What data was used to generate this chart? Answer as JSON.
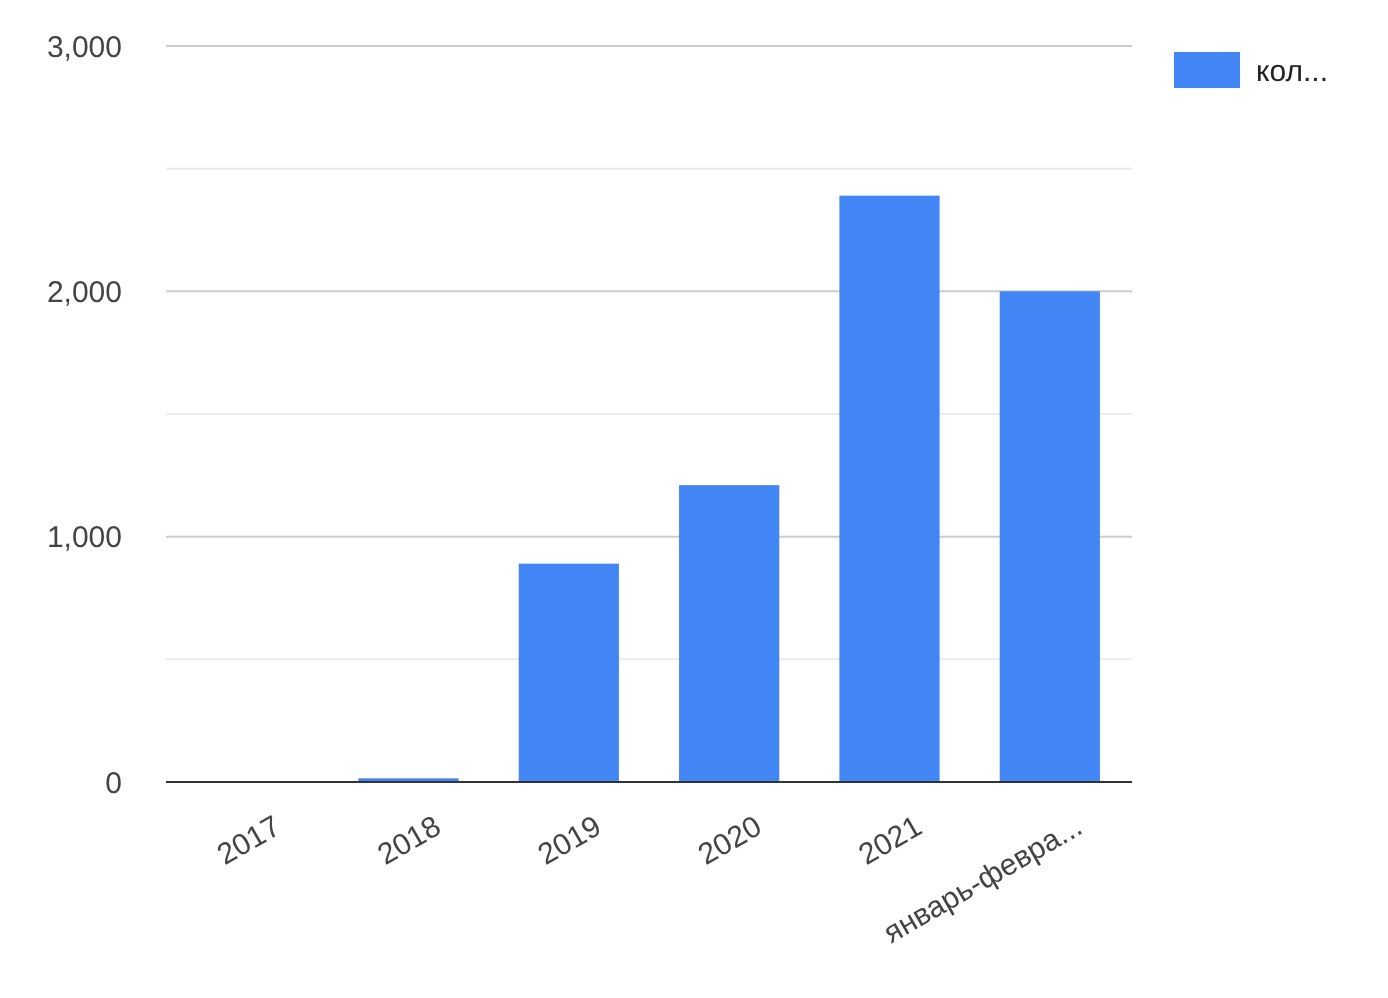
{
  "chart_data": {
    "type": "bar",
    "categories": [
      "2017",
      "2018",
      "2019",
      "2020",
      "2021",
      "январь-февра..."
    ],
    "series": [
      {
        "name": "кол...",
        "color": "#4285f4",
        "values": [
          0,
          15,
          890,
          1210,
          2390,
          2000
        ]
      }
    ],
    "ylim": [
      0,
      3000
    ],
    "yticks": [
      0,
      {
        "value": 500,
        "label": null
      },
      {
        "value": 1000,
        "label": "1,000"
      },
      {
        "value": 1500,
        "label": null
      },
      {
        "value": 2000,
        "label": "2,000"
      },
      {
        "value": 2500,
        "label": null
      },
      {
        "value": 3000,
        "label": "3,000"
      }
    ],
    "grid": "y",
    "legend": "top right"
  }
}
